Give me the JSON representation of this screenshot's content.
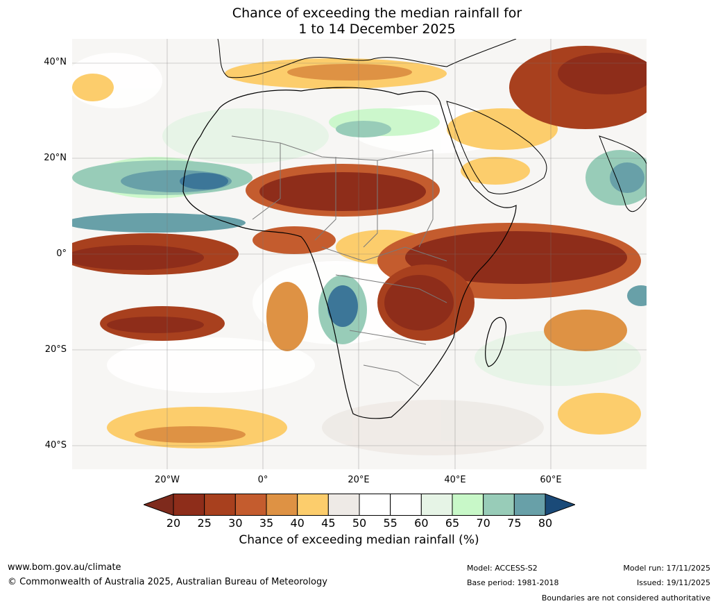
{
  "title": {
    "line1": "Chance of exceeding the median rainfall for",
    "line2": "1 to 14 December 2025"
  },
  "map": {
    "region": "Africa",
    "lat_labels": [
      "40°N",
      "20°N",
      "0°",
      "20°S",
      "40°S"
    ],
    "lon_labels": [
      "20°W",
      "0°",
      "20°E",
      "40°E",
      "60°E"
    ]
  },
  "colorbar": {
    "ticks": [
      "20",
      "25",
      "30",
      "35",
      "40",
      "45",
      "50",
      "55",
      "60",
      "65",
      "70",
      "75",
      "80"
    ],
    "colors": [
      "#8e2d1a",
      "#a8401e",
      "#c45c2e",
      "#de9244",
      "#fccd6c",
      "#eeeae6",
      "#ffffff",
      "#ffffff",
      "#e6f4e6",
      "#c8f8c8",
      "#98ccb8",
      "#68a0a8",
      "#3c7698"
    ],
    "under_color": "#7e2a1c",
    "over_color": "#1a4a78",
    "label": "Chance of exceeding median rainfall (%)"
  },
  "footer": {
    "website": "www.bom.gov.au/climate",
    "copyright": "© Commonwealth of Australia 2025, Australian Bureau of Meteorology",
    "model": "Model: ACCESS-S2",
    "base_period": "Base period: 1981-2018",
    "model_run": "Model run: 17/11/2025",
    "issued": "Issued: 19/11/2025",
    "disclaimer": "Boundaries are not considered authoritative"
  }
}
